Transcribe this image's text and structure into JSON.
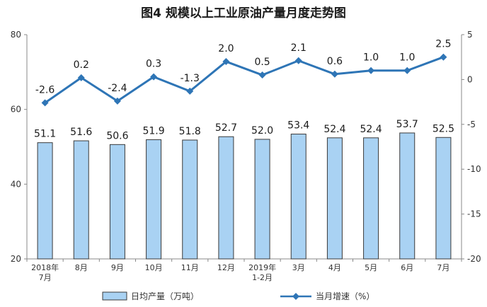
{
  "chart_data": {
    "type": "bar+line",
    "title": "图4  规模以上工业原油产量月度走势图",
    "categories": [
      "2018年\n7月",
      "8月",
      "9月",
      "10月",
      "11月",
      "12月",
      "2019年\n1-2月",
      "3月",
      "4月",
      "5月",
      "6月",
      "7月"
    ],
    "series": [
      {
        "name": "日均产量（万吨）",
        "type": "bar",
        "axis": "left",
        "color": "#a9d2f3",
        "values": [
          51.1,
          51.6,
          50.6,
          51.9,
          51.8,
          52.7,
          52.0,
          53.4,
          52.4,
          52.4,
          53.7,
          52.5
        ],
        "labels": [
          "51.1",
          "51.6",
          "50.6",
          "51.9",
          "51.8",
          "52.7",
          "52.0",
          "53.4",
          "52.4",
          "52.4",
          "53.7",
          "52.5"
        ]
      },
      {
        "name": "当月增速（%）",
        "type": "line",
        "axis": "right",
        "color": "#2e75b6",
        "values": [
          -2.6,
          0.2,
          -2.4,
          0.3,
          -1.3,
          2.0,
          0.5,
          2.1,
          0.6,
          1.0,
          1.0,
          2.5
        ],
        "labels": [
          "-2.6",
          "0.2",
          "-2.4",
          "0.3",
          "-1.3",
          "2.0",
          "0.5",
          "2.1",
          "0.6",
          "1.0",
          "1.0",
          "2.5"
        ]
      }
    ],
    "y_left": {
      "ylim": [
        20,
        80
      ],
      "ticks": [
        "20",
        "40",
        "60",
        "80"
      ],
      "values": [
        20,
        40,
        60,
        80
      ]
    },
    "y_right": {
      "ylim": [
        -20,
        5
      ],
      "ticks": [
        "-20",
        "-15",
        "-10",
        "-5",
        "0",
        "5"
      ],
      "values": [
        -20,
        -15,
        -10,
        -5,
        0,
        5
      ]
    },
    "grid": false,
    "legend": "bottom"
  }
}
